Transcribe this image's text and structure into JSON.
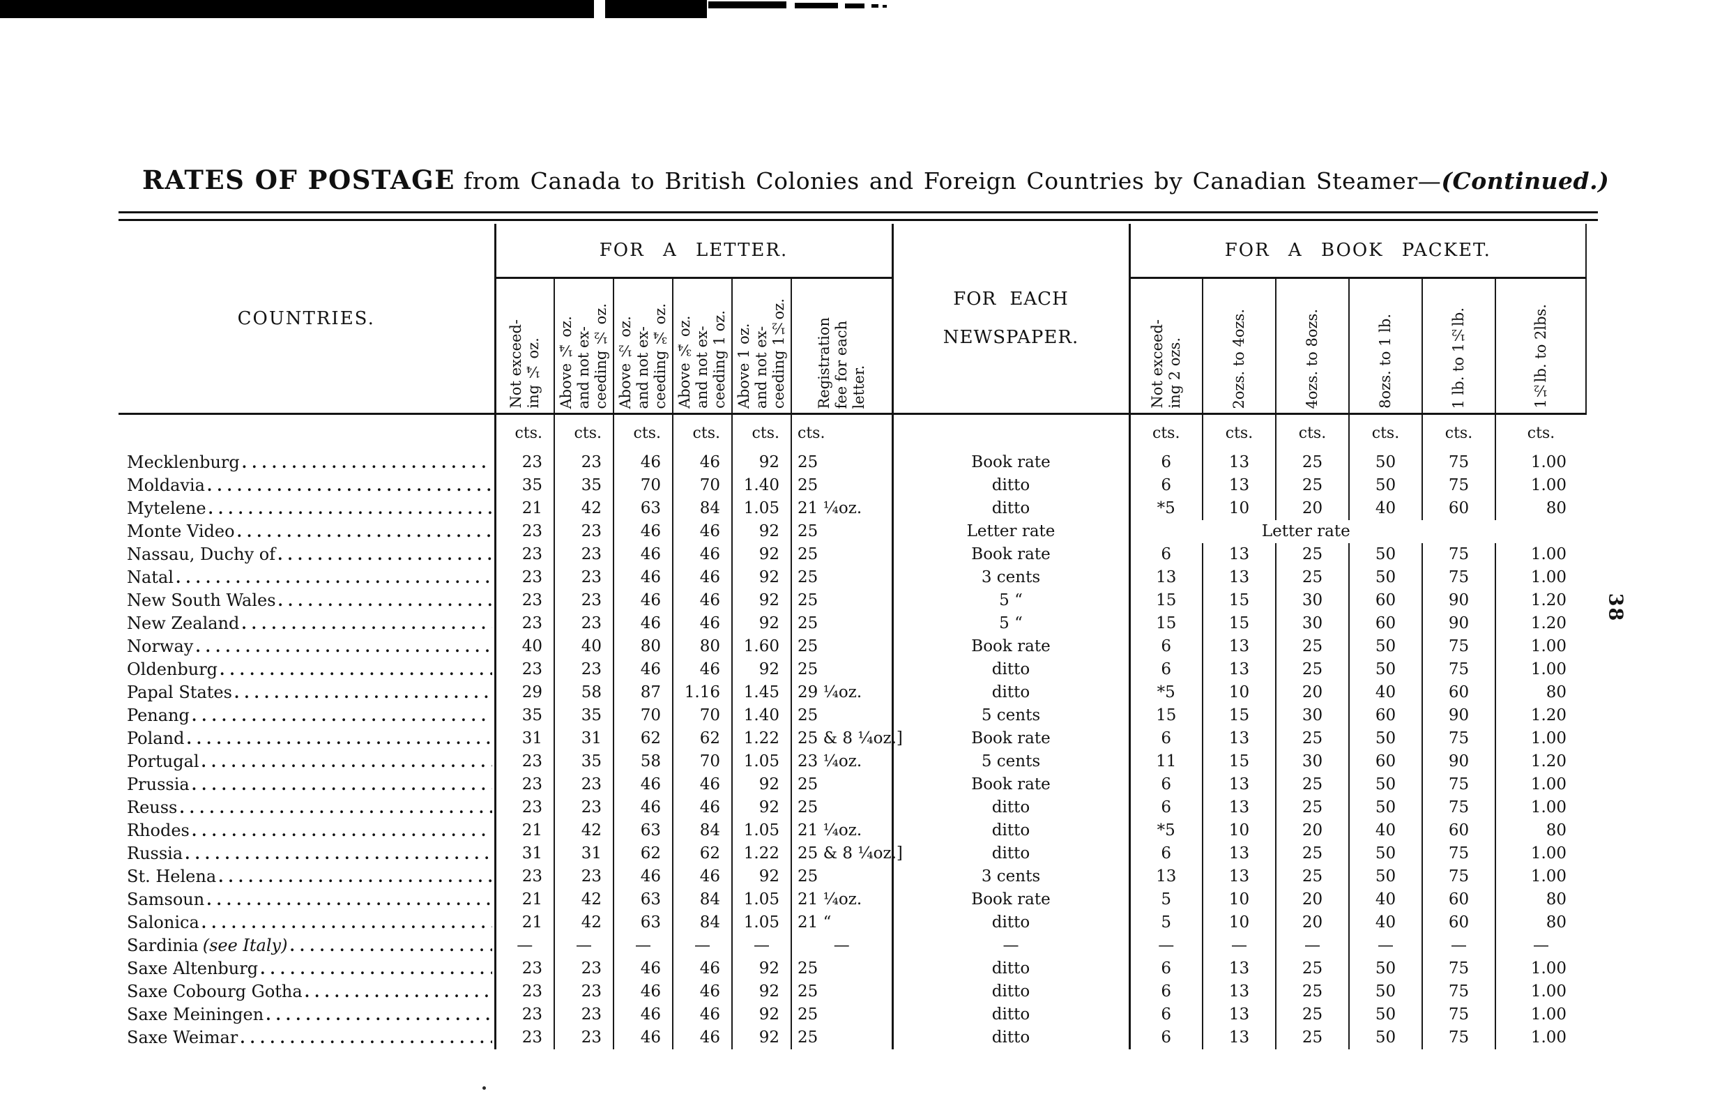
{
  "page": {
    "title_lead": "RATES OF POSTAGE",
    "title_body": "from Canada to British Colonies and Foreign Countries by Canadian Steamer—",
    "title_continued": "(Continued.)",
    "page_number": "38"
  },
  "table": {
    "countries_header": "COUNTRIES.",
    "unit_label": "cts.",
    "groups": {
      "letter": "FOR A LETTER.",
      "newspaper": "FOR EACH\nNEWSPAPER.",
      "book": "FOR A BOOK PACKET."
    },
    "letter_columns": [
      "Not exceed-\ning ¼ oz.",
      "Above ¼ oz.\nand not ex-\nceeding ½ oz.",
      "Above ½ oz.\nand not ex-\nceeding ¾ oz.",
      "Above ¾ oz.\nand not ex-\nceeding 1 oz.",
      "Above 1 oz.\nand not ex-\nceeding 1½oz.",
      "Registration\nfee for each\nletter."
    ],
    "book_columns": [
      "Not exceed-\ning 2 ozs.",
      "2ozs. to 4ozs.",
      "4ozs. to 8ozs.",
      "8ozs. to 1 lb.",
      "1 lb. to 1½lb.",
      "1½lb. to 2lbs."
    ],
    "rows": [
      {
        "country": "Mecklenburg",
        "letter": [
          "23",
          "23",
          "46",
          "46",
          "92"
        ],
        "reg": "25",
        "news": "Book rate",
        "book": [
          "6",
          "13",
          "25",
          "50",
          "75",
          "1.00"
        ]
      },
      {
        "country": "Moldavia",
        "letter": [
          "35",
          "35",
          "70",
          "70",
          "1.40"
        ],
        "reg": "25",
        "news": "ditto",
        "book": [
          "6",
          "13",
          "25",
          "50",
          "75",
          "1.00"
        ]
      },
      {
        "country": "Mytelene",
        "letter": [
          "21",
          "42",
          "63",
          "84",
          "1.05"
        ],
        "reg": "21 ¼oz.",
        "news": "ditto",
        "book": [
          "*5",
          "10",
          "20",
          "40",
          "60",
          "80"
        ]
      },
      {
        "country": "Monte Video",
        "letter": [
          "23",
          "23",
          "46",
          "46",
          "92"
        ],
        "reg": "25",
        "news": "Letter rate",
        "book_span": "Letter rate"
      },
      {
        "country": "Nassau, Duchy of",
        "letter": [
          "23",
          "23",
          "46",
          "46",
          "92"
        ],
        "reg": "25",
        "news": "Book rate",
        "book": [
          "6",
          "13",
          "25",
          "50",
          "75",
          "1.00"
        ]
      },
      {
        "country": "Natal",
        "letter": [
          "23",
          "23",
          "46",
          "46",
          "92"
        ],
        "reg": "25",
        "news": "3 cents",
        "book": [
          "13",
          "13",
          "25",
          "50",
          "75",
          "1.00"
        ]
      },
      {
        "country": "New South Wales",
        "letter": [
          "23",
          "23",
          "46",
          "46",
          "92"
        ],
        "reg": "25",
        "news": "5   “",
        "book": [
          "15",
          "15",
          "30",
          "60",
          "90",
          "1.20"
        ]
      },
      {
        "country": "New Zealand",
        "letter": [
          "23",
          "23",
          "46",
          "46",
          "92"
        ],
        "reg": "25",
        "news": "5   “",
        "book": [
          "15",
          "15",
          "30",
          "60",
          "90",
          "1.20"
        ]
      },
      {
        "country": "Norway",
        "letter": [
          "40",
          "40",
          "80",
          "80",
          "1.60"
        ],
        "reg": "25",
        "news": "Book rate",
        "book": [
          "6",
          "13",
          "25",
          "50",
          "75",
          "1.00"
        ]
      },
      {
        "country": "Oldenburg",
        "letter": [
          "23",
          "23",
          "46",
          "46",
          "92"
        ],
        "reg": "25",
        "news": "ditto",
        "book": [
          "6",
          "13",
          "25",
          "50",
          "75",
          "1.00"
        ]
      },
      {
        "country": "Papal States",
        "letter": [
          "29",
          "58",
          "87",
          "1.16",
          "1.45"
        ],
        "reg": "29 ¼oz.",
        "news": "ditto",
        "book": [
          "*5",
          "10",
          "20",
          "40",
          "60",
          "80"
        ]
      },
      {
        "country": "Penang",
        "letter": [
          "35",
          "35",
          "70",
          "70",
          "1.40"
        ],
        "reg": "25",
        "news": "5 cents",
        "book": [
          "15",
          "15",
          "30",
          "60",
          "90",
          "1.20"
        ]
      },
      {
        "country": "Poland",
        "letter": [
          "31",
          "31",
          "62",
          "62",
          "1.22"
        ],
        "reg": "25 & 8 ¼oz.]",
        "news": "Book rate",
        "book": [
          "6",
          "13",
          "25",
          "50",
          "75",
          "1.00"
        ]
      },
      {
        "country": "Portugal",
        "letter": [
          "23",
          "35",
          "58",
          "70",
          "1.05"
        ],
        "reg": "23 ¼oz.",
        "news": "5 cents",
        "book": [
          "11",
          "15",
          "30",
          "60",
          "90",
          "1.20"
        ]
      },
      {
        "country": "Prussia",
        "letter": [
          "23",
          "23",
          "46",
          "46",
          "92"
        ],
        "reg": "25",
        "news": "Book rate",
        "book": [
          "6",
          "13",
          "25",
          "50",
          "75",
          "1.00"
        ]
      },
      {
        "country": "Reuss",
        "letter": [
          "23",
          "23",
          "46",
          "46",
          "92"
        ],
        "reg": "25",
        "news": "ditto",
        "book": [
          "6",
          "13",
          "25",
          "50",
          "75",
          "1.00"
        ]
      },
      {
        "country": "Rhodes",
        "letter": [
          "21",
          "42",
          "63",
          "84",
          "1.05"
        ],
        "reg": "21 ¼oz.",
        "news": "ditto",
        "book": [
          "*5",
          "10",
          "20",
          "40",
          "60",
          "80"
        ]
      },
      {
        "country": "Russia",
        "letter": [
          "31",
          "31",
          "62",
          "62",
          "1.22"
        ],
        "reg": "25 & 8 ¼oz.]",
        "news": "ditto",
        "book": [
          "6",
          "13",
          "25",
          "50",
          "75",
          "1.00"
        ]
      },
      {
        "country": "St. Helena",
        "letter": [
          "23",
          "23",
          "46",
          "46",
          "92"
        ],
        "reg": "25",
        "news": "3 cents",
        "book": [
          "13",
          "13",
          "25",
          "50",
          "75",
          "1.00"
        ]
      },
      {
        "country": "Samsoun",
        "letter": [
          "21",
          "42",
          "63",
          "84",
          "1.05"
        ],
        "reg": "21 ¼oz.",
        "news": "Book rate",
        "book": [
          "5",
          "10",
          "20",
          "40",
          "60",
          "80"
        ]
      },
      {
        "country": "Salonica",
        "letter": [
          "21",
          "42",
          "63",
          "84",
          "1.05"
        ],
        "reg": "21   “",
        "news": "ditto",
        "book": [
          "5",
          "10",
          "20",
          "40",
          "60",
          "80"
        ]
      },
      {
        "country": "Sardinia",
        "note": "(see Italy)",
        "letter": [
          "—",
          "—",
          "—",
          "—",
          "—"
        ],
        "reg": "—",
        "news": "—",
        "book": [
          "—",
          "—",
          "—",
          "—",
          "—",
          "—"
        ]
      },
      {
        "country": "Saxe Altenburg",
        "letter": [
          "23",
          "23",
          "46",
          "46",
          "92"
        ],
        "reg": "25",
        "news": "ditto",
        "book": [
          "6",
          "13",
          "25",
          "50",
          "75",
          "1.00"
        ]
      },
      {
        "country": "Saxe Cobourg Gotha",
        "letter": [
          "23",
          "23",
          "46",
          "46",
          "92"
        ],
        "reg": "25",
        "news": "ditto",
        "book": [
          "6",
          "13",
          "25",
          "50",
          "75",
          "1.00"
        ]
      },
      {
        "country": "Saxe Meiningen",
        "letter": [
          "23",
          "23",
          "46",
          "46",
          "92"
        ],
        "reg": "25",
        "news": "ditto",
        "book": [
          "6",
          "13",
          "25",
          "50",
          "75",
          "1.00"
        ]
      },
      {
        "country": "Saxe Weimar",
        "letter": [
          "23",
          "23",
          "46",
          "46",
          "92"
        ],
        "reg": "25",
        "news": "ditto",
        "book": [
          "6",
          "13",
          "25",
          "50",
          "75",
          "1.00"
        ]
      }
    ]
  }
}
